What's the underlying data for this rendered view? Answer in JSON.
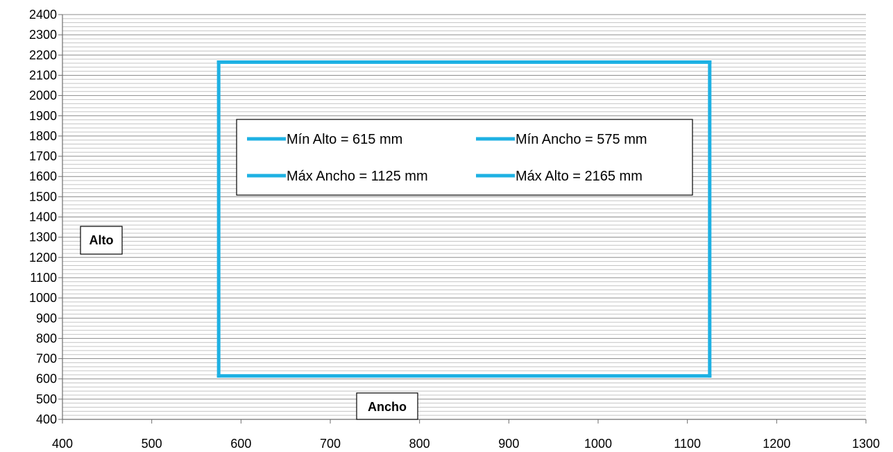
{
  "chart_data": {
    "type": "line",
    "xlim": [
      400,
      1300
    ],
    "ylim": [
      400,
      2400
    ],
    "x_ticks": [
      400,
      500,
      600,
      700,
      800,
      900,
      1000,
      1100,
      1200,
      1300
    ],
    "y_ticks": [
      400,
      500,
      600,
      700,
      800,
      900,
      1000,
      1100,
      1200,
      1300,
      1400,
      1500,
      1600,
      1700,
      1800,
      1900,
      2000,
      2100,
      2200,
      2300,
      2400
    ],
    "y_minor_step": 20,
    "grid": true,
    "xlabel": "Ancho",
    "ylabel": "Alto",
    "legend_position": "top-center",
    "series": [
      {
        "name": "Mín Alto = 615 mm",
        "color": "#1EB1E3",
        "x": [
          575,
          1125
        ],
        "y": [
          615,
          615
        ]
      },
      {
        "name": "Mín Ancho = 575 mm",
        "color": "#1EB1E3",
        "x": [
          575,
          575
        ],
        "y": [
          615,
          2165
        ]
      },
      {
        "name": "Máx Ancho = 1125 mm",
        "color": "#1EB1E3",
        "x": [
          1125,
          1125
        ],
        "y": [
          615,
          2165
        ]
      },
      {
        "name": "Máx Alto = 2165 mm",
        "color": "#1EB1E3",
        "x": [
          575,
          1125
        ],
        "y": [
          2165,
          2165
        ]
      }
    ]
  }
}
